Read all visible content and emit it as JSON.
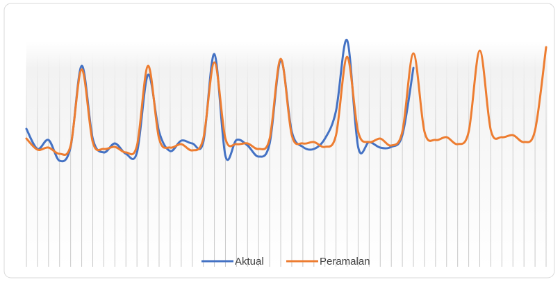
{
  "chart_data": {
    "type": "line",
    "series": [
      {
        "name": "Aktual",
        "color": "#4472c4",
        "values": [
          199,
          170,
          183,
          153,
          173,
          290,
          185,
          165,
          178,
          163,
          165,
          277,
          195,
          167,
          182,
          178,
          180,
          307,
          160,
          183,
          175,
          159,
          178,
          298,
          195,
          173,
          170,
          185,
          225,
          327,
          173,
          180,
          172,
          173,
          190,
          287,
          null,
          null,
          null,
          null,
          null,
          null,
          null,
          null,
          null,
          null,
          null,
          null
        ]
      },
      {
        "name": "Peramalan",
        "color": "#ed7d31",
        "values": [
          185,
          169,
          172,
          163,
          175,
          285,
          180,
          170,
          173,
          165,
          175,
          290,
          185,
          172,
          177,
          168,
          185,
          295,
          185,
          177,
          178,
          170,
          185,
          300,
          190,
          178,
          180,
          173,
          190,
          303,
          195,
          180,
          185,
          175,
          195,
          308,
          195,
          183,
          187,
          177,
          195,
          312,
          197,
          187,
          190,
          180,
          197,
          317
        ]
      }
    ],
    "ylim": [
      0,
      330
    ]
  }
}
